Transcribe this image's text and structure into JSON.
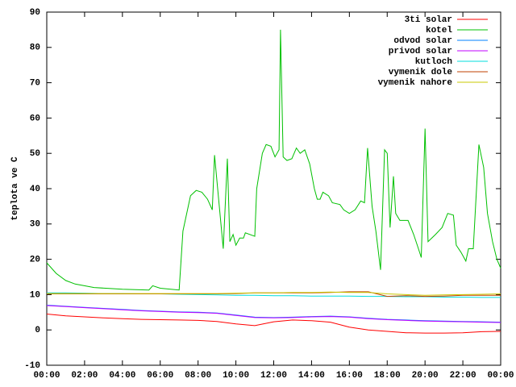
{
  "chart_data": {
    "type": "line",
    "ylabel": "teplota ve C",
    "xlim": [
      0,
      24
    ],
    "xticks": [
      {
        "value": 0,
        "label": "00:00"
      },
      {
        "value": 2,
        "label": "02:00"
      },
      {
        "value": 4,
        "label": "04:00"
      },
      {
        "value": 6,
        "label": "06:00"
      },
      {
        "value": 8,
        "label": "08:00"
      },
      {
        "value": 10,
        "label": "10:00"
      },
      {
        "value": 12,
        "label": "12:00"
      },
      {
        "value": 14,
        "label": "14:00"
      },
      {
        "value": 16,
        "label": "16:00"
      },
      {
        "value": 18,
        "label": "18:00"
      },
      {
        "value": 20,
        "label": "20:00"
      },
      {
        "value": 22,
        "label": "22:00"
      },
      {
        "value": 24,
        "label": "00:00"
      }
    ],
    "ylim": [
      -10,
      90
    ],
    "yticks": [
      -10,
      0,
      10,
      20,
      30,
      40,
      50,
      60,
      70,
      80,
      90
    ],
    "legend": "top-right",
    "x": [
      0,
      1,
      2,
      3,
      4,
      5,
      6,
      7,
      8,
      9,
      10,
      11,
      12,
      13,
      14,
      15,
      16,
      17,
      18,
      19,
      20,
      21,
      22,
      23,
      24
    ],
    "series": [
      {
        "name": "3ti solar",
        "color": "#ff0000",
        "values": [
          4.5,
          4,
          3.7,
          3.4,
          3.2,
          3.0,
          2.9,
          2.8,
          2.7,
          2.4,
          1.7,
          1.2,
          2.3,
          2.8,
          2.6,
          2.2,
          0.8,
          0,
          -0.4,
          -0.8,
          -0.9,
          -0.9,
          -0.8,
          -0.5,
          -0.4
        ]
      },
      {
        "name": "kotel",
        "color": "#00c000",
        "x": [
          0,
          0.5,
          1,
          1.5,
          2.5,
          4,
          5.4,
          5.6,
          6,
          7,
          7.2,
          7.6,
          7.9,
          8.2,
          8.5,
          8.75,
          8.87,
          9.33,
          9.55,
          9.68,
          9.85,
          10.0,
          10.2,
          10.4,
          10.5,
          11.0,
          11.1,
          11.4,
          11.6,
          11.85,
          12.07,
          12.28,
          12.36,
          12.5,
          12.7,
          12.96,
          13.2,
          13.4,
          13.64,
          13.9,
          14.15,
          14.3,
          14.45,
          14.6,
          14.9,
          15.1,
          15.5,
          15.7,
          16.0,
          16.3,
          16.6,
          16.8,
          16.96,
          17.2,
          17.4,
          17.65,
          17.86,
          18.0,
          18.15,
          18.33,
          18.45,
          18.67,
          19.1,
          19.4,
          19.65,
          19.8,
          20.0,
          20.16,
          20.55,
          20.9,
          21.2,
          21.5,
          21.65,
          21.9,
          22.16,
          22.3,
          22.55,
          22.85,
          23.1,
          23.3,
          23.57,
          23.8,
          24.0
        ],
        "values": [
          19,
          16,
          14,
          13,
          12,
          11.5,
          11.3,
          12.5,
          11.8,
          11.3,
          28,
          38,
          39.5,
          39,
          37,
          34,
          49.5,
          23,
          48.5,
          25,
          27,
          24,
          26,
          26,
          27.5,
          26.5,
          40,
          50,
          52.5,
          52,
          49,
          51,
          85,
          49,
          48,
          48.5,
          51.5,
          50,
          51,
          47,
          40,
          37,
          37,
          39,
          38,
          36,
          35.5,
          34,
          33,
          34,
          36.5,
          36,
          51.5,
          35,
          28,
          17,
          51,
          50,
          29,
          43.5,
          33,
          31,
          31,
          27,
          23,
          20.5,
          57,
          25,
          27,
          29,
          33,
          32.5,
          24,
          22,
          19.5,
          23,
          23,
          52.5,
          46,
          33,
          25,
          20,
          17.5
        ]
      },
      {
        "name": "odvod solar",
        "color": "#0080ff",
        "values": [
          7,
          6.7,
          6.4,
          6.1,
          5.8,
          5.5,
          5.3,
          5.1,
          5.0,
          4.8,
          4.2,
          3.6,
          3.5,
          3.6,
          3.8,
          3.9,
          3.7,
          3.3,
          3.0,
          2.8,
          2.6,
          2.5,
          2.4,
          2.3,
          2.2
        ]
      },
      {
        "name": "privod solar",
        "color": "#c000ff",
        "values": [
          6.9,
          6.6,
          6.3,
          6.0,
          5.7,
          5.4,
          5.2,
          5.0,
          4.9,
          4.7,
          4.1,
          3.5,
          3.4,
          3.5,
          3.7,
          3.8,
          3.6,
          3.2,
          2.9,
          2.7,
          2.5,
          2.4,
          2.3,
          2.2,
          2.1
        ]
      },
      {
        "name": "kutloch",
        "color": "#00dddd",
        "values": [
          10.5,
          10.5,
          10.4,
          10.3,
          10.3,
          10.2,
          10.2,
          10.1,
          10.0,
          9.9,
          9.8,
          9.8,
          9.7,
          9.7,
          9.6,
          9.6,
          9.6,
          9.5,
          9.5,
          9.4,
          9.4,
          9.3,
          9.3,
          9.2,
          9.2
        ]
      },
      {
        "name": "vymenik dole",
        "color": "#c04000",
        "values": [
          10.2,
          10.2,
          10.2,
          10.2,
          10.2,
          10.2,
          10.2,
          10.2,
          10.2,
          10.2,
          10.3,
          10.5,
          10.5,
          10.5,
          10.5,
          10.6,
          10.8,
          10.8,
          9.5,
          9.7,
          9.5,
          9.6,
          9.8,
          9.8,
          9.8
        ]
      },
      {
        "name": "vymenik nahore",
        "color": "#c8c800",
        "values": [
          10.3,
          10.3,
          10.3,
          10.3,
          10.3,
          10.3,
          10.3,
          10.3,
          10.3,
          10.3,
          10.4,
          10.5,
          10.5,
          10.6,
          10.6,
          10.7,
          10.6,
          10.6,
          10.2,
          10.0,
          9.8,
          9.9,
          10.0,
          10.1,
          10.2
        ]
      }
    ]
  }
}
